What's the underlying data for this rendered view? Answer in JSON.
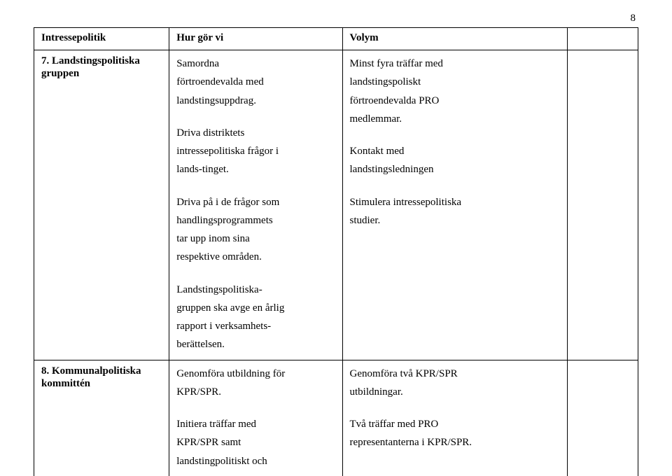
{
  "pageNumber": "8",
  "header": {
    "col1": "Intressepolitik",
    "col2": "Hur gör vi",
    "col3": "Volym",
    "col4": ""
  },
  "rows": [
    {
      "label": "7. Landstingspolitiska gruppen",
      "howParas": [
        "Samordna\nförtroendevalda med\nlandstingsuppdrag.",
        "Driva distriktets\nintressepolitiska frågor i\nlands-tinget.",
        "Driva på i de frågor som\nhandlingsprogrammets\ntar upp inom sina\nrespektive områden.",
        "Landstingspolitiska-\ngruppen ska avge en årlig\nrapport i verksamhets-\nberättelsen."
      ],
      "volParas": [
        "Minst fyra träffar med\nlandstingspoliskt\nförtroendevalda PRO\nmedlemmar.",
        "Kontakt med\nlandstingsledningen",
        "Stimulera intressepolitiska\nstudier."
      ]
    },
    {
      "label": "8. Kommunalpolitiska kommittén",
      "howParas": [
        "Genomföra utbildning för\nKPR/SPR.",
        "Initiera träffar med\nKPR/SPR samt\nlandstingpolitiskt och"
      ],
      "volParas": [
        "Genomföra två KPR/SPR\nutbildningar.",
        "Två träffar med PRO\nrepresentanterna i KPR/SPR."
      ]
    }
  ]
}
